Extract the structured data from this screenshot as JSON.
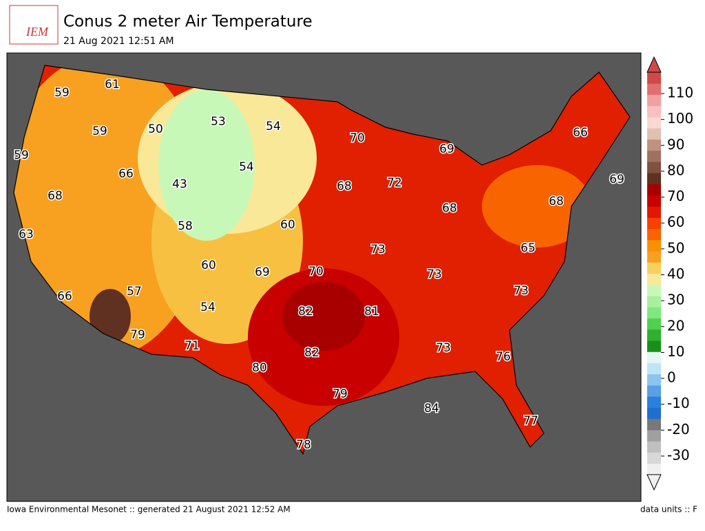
{
  "header": {
    "logo": "IEM",
    "title": "Conus 2 meter Air Temperature",
    "subtitle": "21 Aug 2021 12:51 AM"
  },
  "map": {
    "labels": [
      59,
      61,
      59,
      50,
      53,
      54,
      59,
      66,
      54,
      70,
      69,
      66,
      43,
      68,
      68,
      72,
      58,
      60,
      68,
      68,
      69,
      63,
      73,
      65,
      60,
      69,
      70,
      73,
      57,
      66,
      73,
      54,
      82,
      81,
      79,
      82,
      71,
      73,
      76,
      80,
      79,
      84,
      77,
      78
    ]
  },
  "colorbar": {
    "ticks": [
      -30,
      -20,
      -10,
      0,
      10,
      20,
      30,
      40,
      50,
      60,
      70,
      80,
      90,
      100,
      110
    ],
    "colors": [
      "#f0f0f0",
      "#d8d8d8",
      "#c0c0c0",
      "#a0a0a0",
      "#787878",
      "#1e6fd0",
      "#2a7fe0",
      "#5a9ee6",
      "#8cc4f0",
      "#bfe6f6",
      "#e4f6f6",
      "#189018",
      "#30b030",
      "#50d050",
      "#80e880",
      "#a8f0a0",
      "#c8f8b8",
      "#f8e898",
      "#f8d060",
      "#f8a020",
      "#f89000",
      "#f86400",
      "#f84000",
      "#e01800",
      "#c80000",
      "#a80000",
      "#603020",
      "#805040",
      "#a07060",
      "#c09080",
      "#e0c0b0",
      "#f8d8d0",
      "#f8c0c0",
      "#f0a0a0",
      "#e07070",
      "#d04848"
    ]
  },
  "footer": {
    "left": "Iowa Environmental Mesonet :: generated 21 August 2021 12:52 AM",
    "right": "data units :: F"
  }
}
